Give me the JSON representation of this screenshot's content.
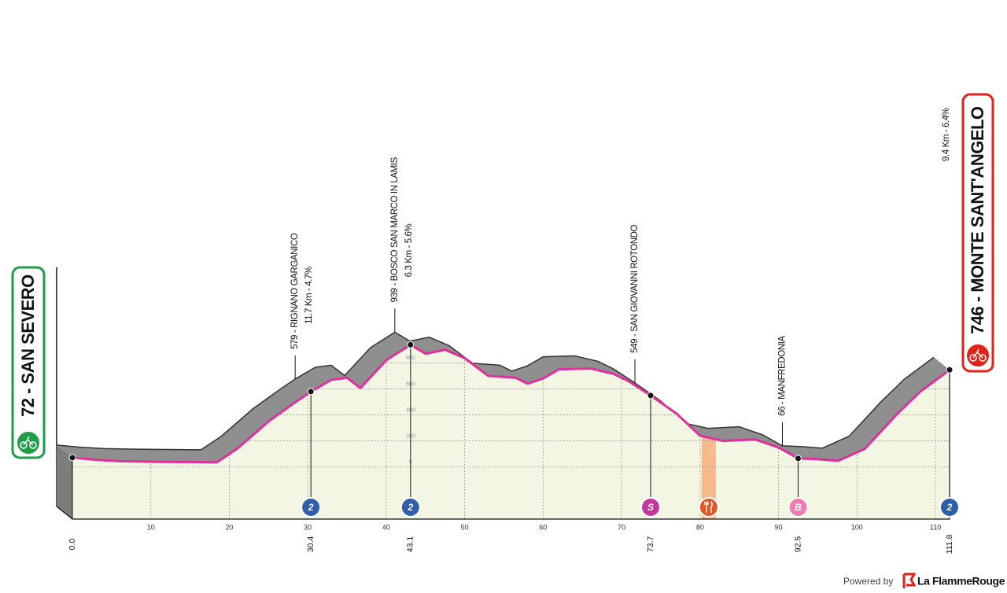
{
  "chart_data": {
    "type": "profile",
    "x": [
      0,
      3,
      6,
      10,
      14,
      18.4,
      21,
      25,
      28,
      30.4,
      33,
      35,
      36.7,
      40,
      43.1,
      45,
      47.5,
      50,
      53,
      56.5,
      58,
      60,
      62,
      66,
      69,
      71,
      73.7,
      77,
      80,
      83,
      87,
      90,
      92.5,
      95,
      97.6,
      101,
      105,
      108,
      111.8
    ],
    "series": [
      {
        "color": "#e0309a",
        "values": [
          72,
          55,
          45,
          40,
          38,
          36,
          140,
          350,
          480,
          579,
          670,
          685,
          606,
          820,
          939,
          870,
          900,
          836,
          700,
          685,
          640,
          680,
          750,
          757,
          715,
          655,
          549,
          410,
          240,
          200,
          212,
          150,
          66,
          60,
          48,
          140,
          400,
          576,
          746
        ]
      }
    ],
    "xlim": [
      0,
      111.8
    ],
    "xticks": [
      10,
      20,
      30,
      40,
      50,
      60,
      70,
      80,
      90,
      100,
      110
    ],
    "ylim": [
      -400,
      1400
    ],
    "yticks": [
      0,
      200,
      400,
      600,
      800
    ],
    "grid": true,
    "start": {
      "name": "72 - SAN SEVERO",
      "color": "#1e9e4a"
    },
    "finish": {
      "name": "746 - MONTE SANT'ANGELO",
      "color": "#e2231a"
    },
    "waypoints": [
      {
        "km": {
          "value": 0,
          "label": "0.0"
        },
        "altitude": 72
      },
      {
        "km": 30.4,
        "altitude": 579,
        "name": "579 - RIGNANO GARGANICO",
        "detail": "11.7 Km - 4.7%",
        "icon": "2",
        "icon_color": "#2f5fa8"
      },
      {
        "km": 43.1,
        "altitude": 939,
        "name": "939 - BOSCO SAN MARCO IN LAMIS",
        "detail": "6.3 Km - 5.6%",
        "icon": "2",
        "icon_color": "#2f5fa8"
      },
      {
        "km": 73.7,
        "altitude": 549,
        "name": "549 - SAN GIOVANNI ROTONDO",
        "icon": "S",
        "icon_color": "#c2389a"
      },
      {
        "km": 92.5,
        "altitude": 66,
        "name": "66 - MANFREDONIA",
        "icon": "B",
        "icon_color": "#f07db2"
      },
      {
        "km": 111.8,
        "altitude": 746,
        "detail": "9.4 Km - 6.4%",
        "icon": "2",
        "icon_color": "#2f5fa8"
      }
    ],
    "feed_zone": {
      "km": [
        80.2,
        82
      ],
      "color": "#f5b98c",
      "icon_color": "#e0582a"
    },
    "footer": {
      "prefix": "Powered by",
      "brand": "La FlammeRouge"
    }
  }
}
